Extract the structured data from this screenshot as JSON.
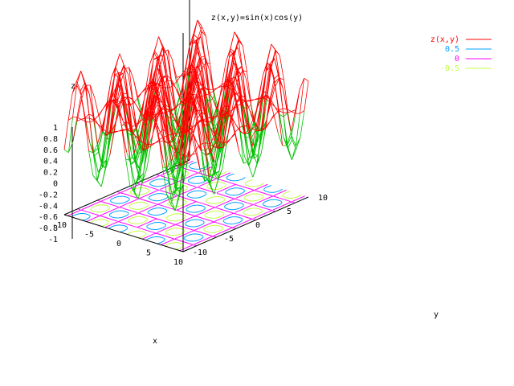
{
  "chart_data": {
    "type": "surface3d",
    "title": "z(x,y)=sin(x)cos(y)",
    "xlabel": "x",
    "ylabel": "y",
    "zlabel": "z",
    "xlim": [
      -10,
      10
    ],
    "ylim": [
      -10,
      10
    ],
    "zlim": [
      -1,
      1
    ],
    "x_ticks": [
      "-10",
      "-5",
      "0",
      "5",
      "10"
    ],
    "y_ticks": [
      "-10",
      "-5",
      "0",
      "5",
      "10"
    ],
    "z_ticks": [
      "1",
      "0.8",
      "0.6",
      "0.4",
      "0.2",
      "0",
      "-0.2",
      "-0.4",
      "-0.6",
      "-0.8",
      "-1"
    ],
    "legend_position": "top-right",
    "series": [
      {
        "name": "z(x,y)",
        "color": "#ff0000",
        "kind": "surface"
      },
      {
        "name": "0.5",
        "color": "#00a0ff",
        "kind": "contour",
        "level": 0.5
      },
      {
        "name": "0",
        "color": "#ff00ff",
        "kind": "contour",
        "level": 0
      },
      {
        "name": "-0.5",
        "color": "#c0ff40",
        "kind": "contour",
        "level": -0.5
      }
    ],
    "surface_underside_color": "#00c000",
    "grid": false,
    "samples": 30
  }
}
